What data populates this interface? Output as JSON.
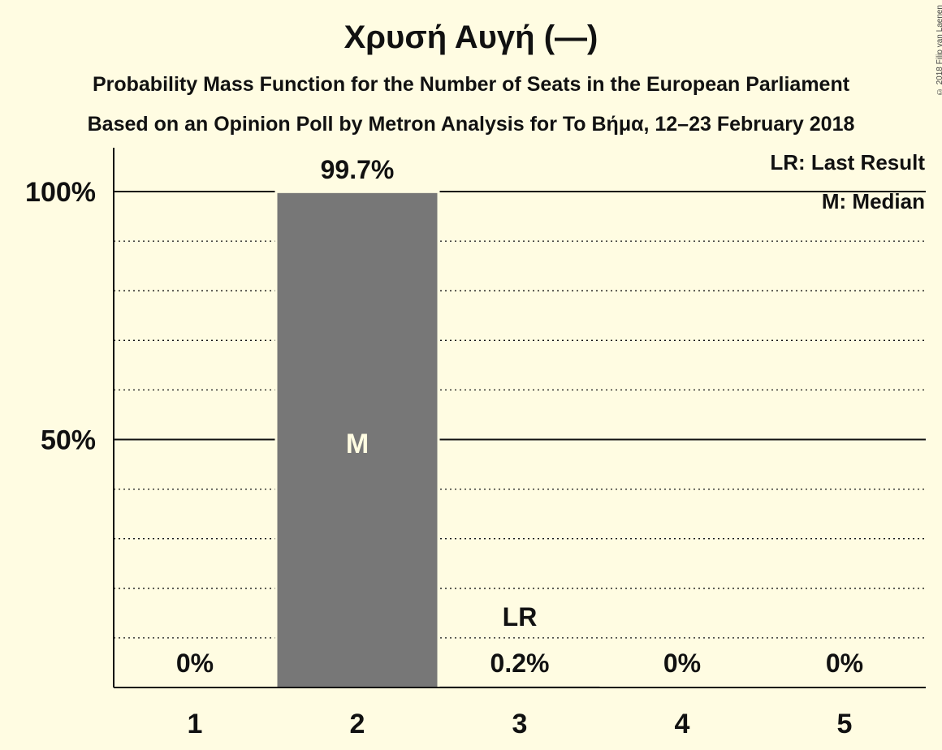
{
  "chart_data": {
    "type": "bar",
    "title": "Χρυσή Αυγή (—)",
    "subtitle_lines": [
      "Probability Mass Function for the Number of Seats in the European Parliament",
      "Based on an Opinion Poll by Metron Analysis for To Βήμα, 12–23 February 2018"
    ],
    "categories": [
      "1",
      "2",
      "3",
      "4",
      "5"
    ],
    "values": [
      0,
      99.7,
      0.2,
      0,
      0
    ],
    "value_labels": [
      "0%",
      "99.7%",
      "0.2%",
      "0%",
      "0%"
    ],
    "ylim": [
      0,
      100
    ],
    "ytick_values": [
      50,
      100
    ],
    "ytick_labels": [
      "50%",
      "100%"
    ],
    "minor_grid_step": 10,
    "grid": true,
    "bar_color": "#777777",
    "background_color": "#fffce2",
    "median_category": "2",
    "median_label": "M",
    "last_result_category": "3",
    "last_result_label": "LR",
    "legend_lines": [
      "LR: Last Result",
      "M: Median"
    ],
    "legend_position": "top-right"
  },
  "copyright": "© 2018 Filip van Laenen"
}
